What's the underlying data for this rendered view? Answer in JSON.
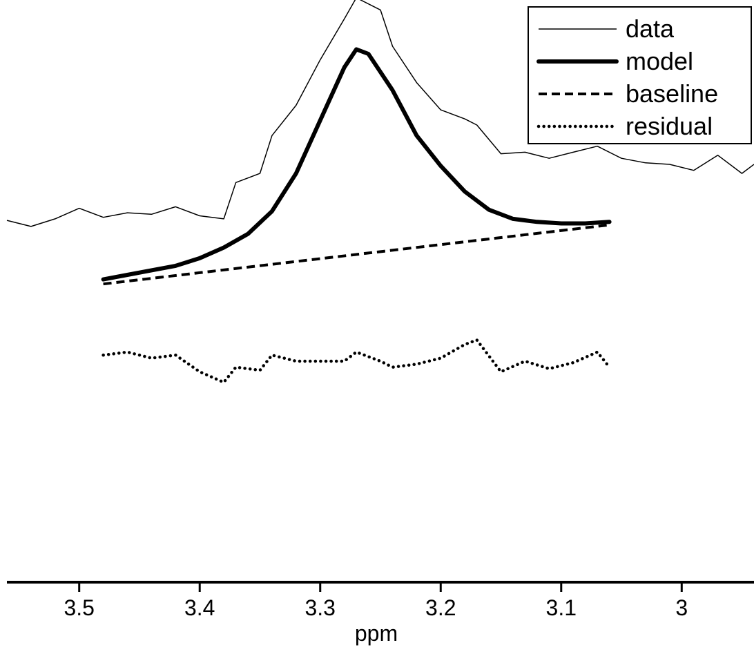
{
  "chart_data": {
    "type": "line",
    "title": "",
    "xlabel": "ppm",
    "ylabel": "",
    "x_reversed": true,
    "xlim": [
      3.56,
      2.94
    ],
    "ylim": [
      -1.0,
      2.8
    ],
    "xticks": [
      {
        "value": 3.5,
        "label": "3.5"
      },
      {
        "value": 3.4,
        "label": "3.4"
      },
      {
        "value": 3.3,
        "label": "3.3"
      },
      {
        "value": 3.2,
        "label": "3.2"
      },
      {
        "value": 3.1,
        "label": "3.1"
      },
      {
        "value": 3.0,
        "label": "3"
      }
    ],
    "grid": false,
    "legend_position": "top-right",
    "series": [
      {
        "name": "data",
        "style": "thin",
        "x": [
          3.56,
          3.54,
          3.52,
          3.5,
          3.48,
          3.46,
          3.44,
          3.42,
          3.4,
          3.38,
          3.37,
          3.35,
          3.34,
          3.32,
          3.3,
          3.28,
          3.27,
          3.25,
          3.24,
          3.22,
          3.2,
          3.18,
          3.17,
          3.15,
          3.13,
          3.11,
          3.09,
          3.07,
          3.05,
          3.03,
          3.01,
          2.99,
          2.97,
          2.95,
          2.94
        ],
        "y": [
          1.39,
          1.35,
          1.4,
          1.47,
          1.41,
          1.44,
          1.43,
          1.48,
          1.42,
          1.4,
          1.64,
          1.7,
          1.95,
          2.15,
          2.45,
          2.72,
          2.86,
          2.78,
          2.54,
          2.3,
          2.12,
          2.06,
          2.02,
          1.83,
          1.84,
          1.8,
          1.84,
          1.88,
          1.8,
          1.77,
          1.76,
          1.72,
          1.82,
          1.7,
          1.76
        ]
      },
      {
        "name": "model",
        "style": "thick",
        "x": [
          3.48,
          3.46,
          3.44,
          3.42,
          3.4,
          3.38,
          3.36,
          3.34,
          3.32,
          3.3,
          3.28,
          3.27,
          3.26,
          3.24,
          3.22,
          3.2,
          3.18,
          3.16,
          3.14,
          3.12,
          3.1,
          3.08,
          3.06
        ],
        "y": [
          1.0,
          1.03,
          1.06,
          1.09,
          1.14,
          1.21,
          1.3,
          1.45,
          1.7,
          2.05,
          2.4,
          2.52,
          2.49,
          2.25,
          1.95,
          1.75,
          1.58,
          1.46,
          1.4,
          1.38,
          1.37,
          1.37,
          1.38
        ]
      },
      {
        "name": "baseline",
        "style": "dashed",
        "x": [
          3.48,
          3.06
        ],
        "y": [
          0.97,
          1.36
        ]
      },
      {
        "name": "residual",
        "style": "dotted",
        "x": [
          3.48,
          3.46,
          3.44,
          3.42,
          3.4,
          3.38,
          3.37,
          3.35,
          3.34,
          3.32,
          3.3,
          3.28,
          3.27,
          3.25,
          3.24,
          3.22,
          3.2,
          3.18,
          3.17,
          3.15,
          3.13,
          3.11,
          3.09,
          3.07,
          3.06
        ],
        "y": [
          0.5,
          0.52,
          0.48,
          0.5,
          0.39,
          0.32,
          0.42,
          0.4,
          0.5,
          0.46,
          0.46,
          0.46,
          0.52,
          0.46,
          0.42,
          0.44,
          0.48,
          0.57,
          0.6,
          0.39,
          0.46,
          0.41,
          0.45,
          0.52,
          0.42
        ]
      }
    ]
  }
}
